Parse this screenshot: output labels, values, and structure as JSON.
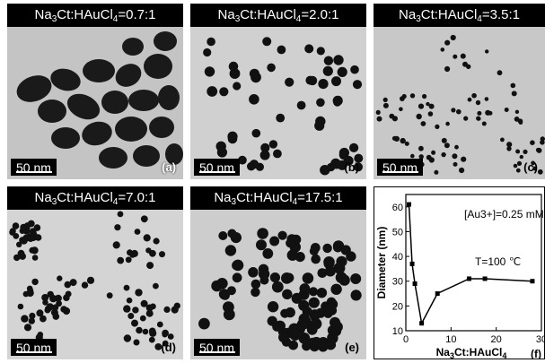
{
  "panels": [
    {
      "id": "a",
      "label": "(a)",
      "ratio": "=0.7:1",
      "scale_bar": "50 nm"
    },
    {
      "id": "b",
      "label": "(b)",
      "ratio": "=2.0:1",
      "scale_bar": "50 nm"
    },
    {
      "id": "c",
      "label": "(c)",
      "ratio": "=3.5:1",
      "scale_bar": "50 nm"
    },
    {
      "id": "d",
      "label": "(d)",
      "ratio": "=7.0:1",
      "scale_bar": "50 nm"
    },
    {
      "id": "e",
      "label": "(e)",
      "ratio": "=17.5:1",
      "scale_bar": "50 nm"
    }
  ],
  "reagent": {
    "left": "Na",
    "left_sub": "3",
    "mid": "Ct:HAuCl",
    "mid_sub": "4"
  },
  "chart_data": {
    "type": "line",
    "panel_label": "(f)",
    "xlabel": "Na3Ct:HAuCl4",
    "ylabel": "Diameter (nm)",
    "xlim": [
      0,
      30
    ],
    "ylim": [
      10,
      65
    ],
    "xticks": [
      0,
      10,
      20,
      30
    ],
    "yticks": [
      10,
      20,
      30,
      40,
      50,
      60
    ],
    "annotations": [
      "[Au3+]=0.25 mM",
      "T=100 ℃"
    ],
    "series": [
      {
        "x": [
          0.7,
          1.4,
          2.0,
          3.5,
          7.0,
          14.0,
          17.5,
          28.0
        ],
        "y": [
          61,
          37,
          29,
          13,
          25,
          31,
          31,
          30
        ]
      }
    ]
  }
}
